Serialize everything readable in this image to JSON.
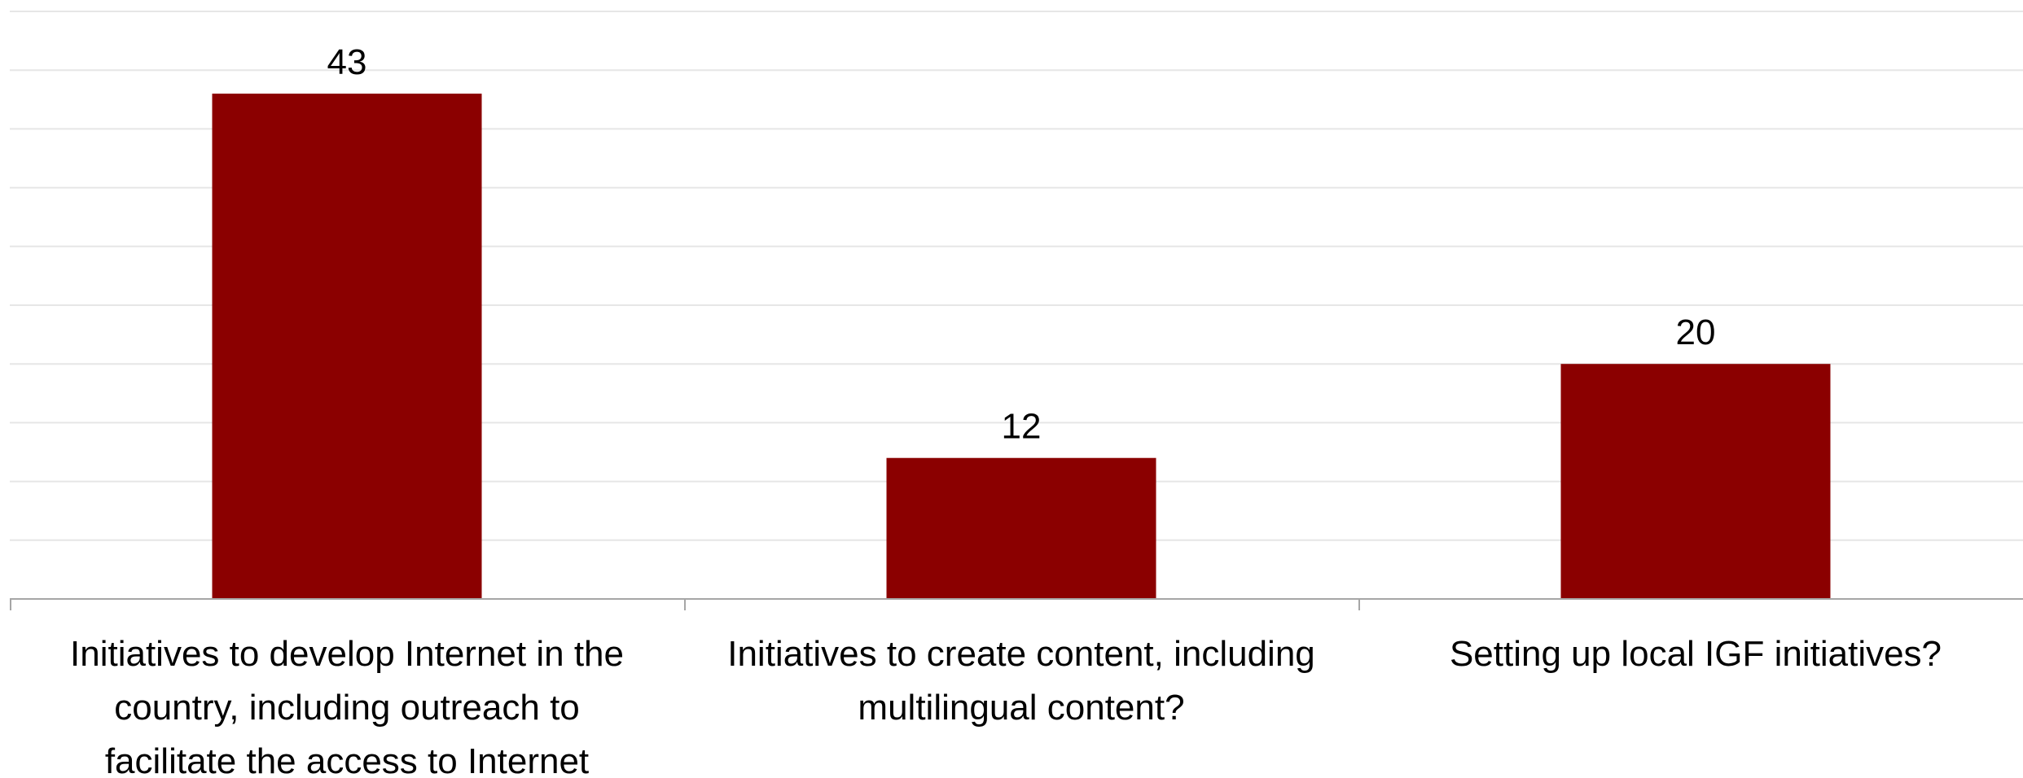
{
  "chart_data": {
    "type": "bar",
    "title": "",
    "xlabel": "",
    "ylabel": "",
    "categories": [
      "Initiatives to develop Internet in the country, including outreach to facilitate the access to Internet",
      "Initiatives to create content, including multilingual content?",
      "Setting up local IGF initiatives?"
    ],
    "category_lines": [
      [
        "Initiatives to develop Internet in the",
        "country, including outreach to",
        "facilitate the access to Internet"
      ],
      [
        "Initiatives to create content, including",
        "multilingual content?"
      ],
      [
        "Setting up local IGF initiatives?"
      ]
    ],
    "values": [
      43,
      12,
      20
    ],
    "data_labels": [
      "43",
      "12",
      "20"
    ],
    "ylim": [
      0,
      50
    ],
    "gridlines": true,
    "legend": "none",
    "colors": {
      "bar": "#8B0000",
      "grid": "#E6E6E6",
      "axis": "#A6A6A6"
    }
  }
}
